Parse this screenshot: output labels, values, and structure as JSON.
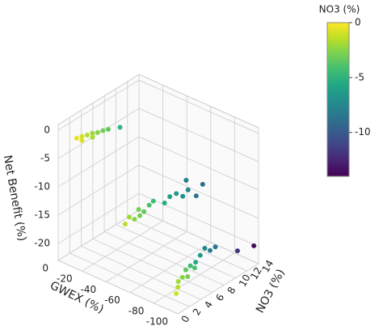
{
  "chart_data": {
    "type": "scatter3d",
    "xlabel": "GWEX (%)",
    "ylabel": "NO3 (%)",
    "zlabel": "Net Benefit (%)",
    "xlim": [
      -100,
      0
    ],
    "xticks": [
      0,
      -20,
      -40,
      -60,
      -80,
      -100
    ],
    "ylim": [
      0,
      14
    ],
    "yticks": [
      0,
      2,
      4,
      6,
      8,
      10,
      12,
      14
    ],
    "zlim": [
      -23,
      1
    ],
    "zticks": [
      0,
      -5,
      -10,
      -15,
      -20
    ],
    "colormap": "viridis",
    "colorbar_label": "NO3 (%)",
    "clim": [
      -14,
      0
    ],
    "cticks": [
      0,
      -5,
      -10
    ],
    "grid": true,
    "x": [
      -13,
      -15,
      -17,
      -19,
      -21,
      -23,
      -25,
      -16,
      -20,
      -30,
      -45,
      -48,
      -50,
      -52,
      -44,
      -47,
      -53,
      -49,
      -62,
      -65,
      -68,
      -70,
      -66,
      -72,
      -60,
      -75,
      -88,
      -86,
      -87,
      -89,
      -85,
      -90,
      -84,
      -86,
      -85,
      -84,
      -86,
      -88,
      -90,
      -93,
      -97
    ],
    "y": [
      0.5,
      1,
      1.5,
      2,
      2.5,
      3,
      3.5,
      0.8,
      1.8,
      4.5,
      3,
      4,
      4.5,
      5,
      2.5,
      3.5,
      5.5,
      4,
      6.5,
      7,
      7.5,
      8,
      8.5,
      9,
      6,
      9.5,
      2.5,
      3,
      3.5,
      4,
      4.5,
      5,
      5.5,
      6,
      7,
      8,
      8.5,
      9,
      1.8,
      11.8,
      13.8
    ],
    "z": [
      -0.5,
      -0.3,
      -0.2,
      0,
      0,
      0.2,
      0.3,
      -0.8,
      -0.5,
      0.5,
      -13,
      -12,
      -12.5,
      -11.5,
      -14,
      -13.5,
      -11,
      -13,
      -10,
      -9.5,
      -10,
      -9,
      -8,
      -10.5,
      -11,
      -8.5,
      -21,
      -20.5,
      -20,
      -20,
      -19.5,
      -19,
      -19.5,
      -19,
      -18.5,
      -18,
      -18.5,
      -18,
      -21.5,
      -20,
      -20
    ],
    "c": [
      -0.5,
      -1,
      -1.5,
      -2,
      -2.5,
      -3,
      -3.5,
      -0.8,
      -1.8,
      -5,
      -2,
      -3,
      -3.5,
      -4,
      -1.5,
      -2.5,
      -4.5,
      -3,
      -6,
      -6.5,
      -7,
      -7.5,
      -8,
      -8.5,
      -5.5,
      -9,
      -1.5,
      -2,
      -2.5,
      -3,
      -3.5,
      -4,
      -4.5,
      -5.5,
      -6.5,
      -7.5,
      -8,
      -8.5,
      -1,
      -12,
      -13.5
    ]
  }
}
